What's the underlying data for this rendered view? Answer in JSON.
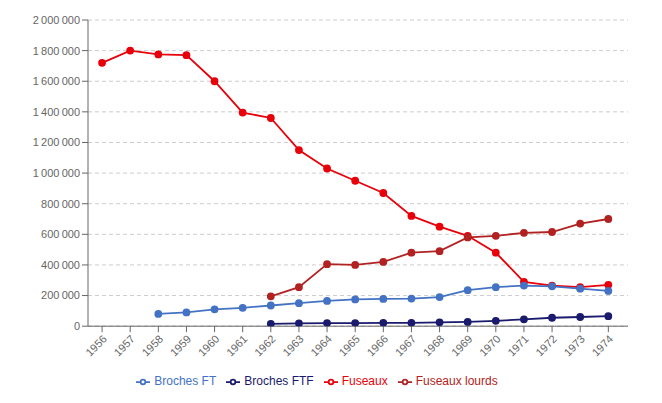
{
  "chart_data": {
    "type": "line",
    "x": [
      1956,
      1957,
      1958,
      1959,
      1960,
      1961,
      1962,
      1963,
      1964,
      1965,
      1966,
      1967,
      1968,
      1969,
      1970,
      1971,
      1972,
      1973,
      1974
    ],
    "series": [
      {
        "name": "Fuseaux",
        "color": "#e8000a",
        "marker": "circle",
        "values": [
          1720000,
          1800000,
          1775000,
          1770000,
          1600000,
          1395000,
          1360000,
          1150000,
          1030000,
          950000,
          870000,
          720000,
          650000,
          590000,
          480000,
          290000,
          265000,
          255000,
          270000
        ]
      },
      {
        "name": "Fuseaux lourds",
        "color": "#b22222",
        "marker": "circle",
        "values": [
          null,
          null,
          null,
          null,
          null,
          null,
          195000,
          255000,
          405000,
          400000,
          420000,
          480000,
          490000,
          580000,
          590000,
          610000,
          615000,
          670000,
          700000
        ]
      },
      {
        "name": "Broches FT",
        "color": "#4472c4",
        "marker": "circle",
        "values": [
          null,
          null,
          80000,
          90000,
          110000,
          120000,
          135000,
          150000,
          165000,
          175000,
          178000,
          180000,
          190000,
          235000,
          255000,
          265000,
          260000,
          245000,
          230000
        ]
      },
      {
        "name": "Broches FTF",
        "color": "#1a1a6e",
        "marker": "circle",
        "values": [
          null,
          null,
          null,
          null,
          null,
          null,
          15000,
          18000,
          20000,
          20000,
          22000,
          22000,
          25000,
          28000,
          35000,
          45000,
          55000,
          60000,
          65000
        ]
      }
    ],
    "xlim": [
      1955.5,
      1974.7
    ],
    "xticks": [
      1956,
      1957,
      1958,
      1959,
      1960,
      1961,
      1962,
      1963,
      1964,
      1965,
      1966,
      1967,
      1968,
      1969,
      1970,
      1971,
      1972,
      1973,
      1974
    ],
    "ylim": [
      0,
      2000000
    ],
    "yticks": [
      0,
      {
        "value": 200000,
        "label": "200 000"
      },
      {
        "value": 400000,
        "label": "400 000"
      },
      {
        "value": 600000,
        "label": "600 000"
      },
      {
        "value": 800000,
        "label": "800 000"
      },
      {
        "value": 1000000,
        "label": "1 000 000"
      },
      {
        "value": 1200000,
        "label": "1 200 000"
      },
      {
        "value": 1400000,
        "label": "1 400 000"
      },
      {
        "value": 1600000,
        "label": "1 600 000"
      },
      {
        "value": 1800000,
        "label": "1 800 000"
      },
      {
        "value": 2000000,
        "label": "2 000 000"
      }
    ],
    "grid": true,
    "legend": "bottom"
  }
}
